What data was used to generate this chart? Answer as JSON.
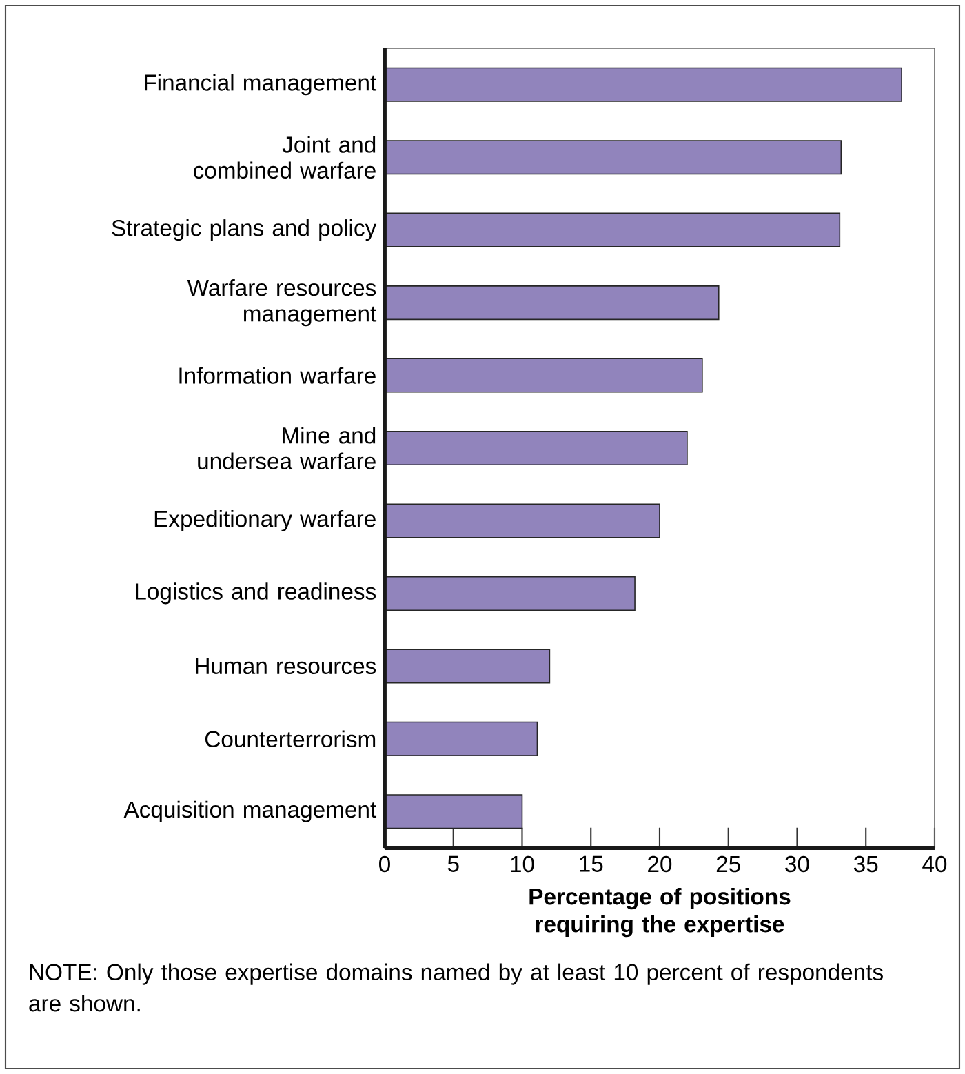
{
  "chart_data": {
    "type": "bar",
    "orientation": "horizontal",
    "categories": [
      "Financial management",
      "Joint and combined warfare",
      "Strategic plans and policy",
      "Warfare resources management",
      "Information warfare",
      "Mine and undersea warfare",
      "Expeditionary warfare",
      "Logistics and readiness",
      "Human resources",
      "Counterterrorism",
      "Acquisition management"
    ],
    "values": [
      37.6,
      33.2,
      33.1,
      24.3,
      23.1,
      22.0,
      20.0,
      18.2,
      12.0,
      11.1,
      10.0
    ],
    "color": "#9184bc",
    "xlim": [
      0,
      40
    ],
    "xticks": [
      0,
      5,
      10,
      15,
      20,
      25,
      30,
      35,
      40
    ],
    "xlabel": "Percentage of positions requiring the expertise",
    "annotations": [
      "NOTE: Only those expertise domains named by at least 10 percent of respondents are shown."
    ]
  }
}
